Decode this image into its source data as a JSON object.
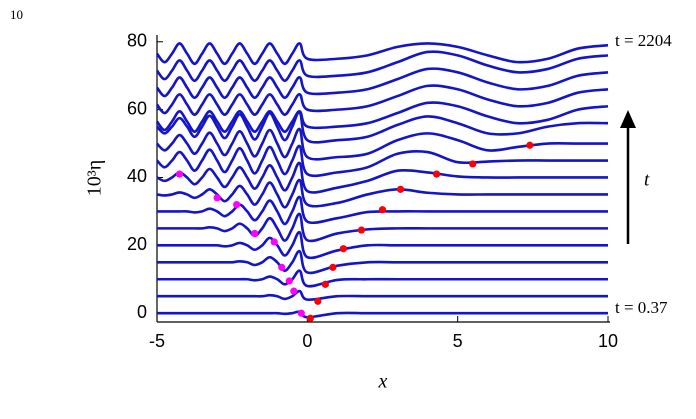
{
  "page_number": "10",
  "chart_data": {
    "type": "line",
    "xlabel": "x",
    "ylabel": "10³η",
    "top_label": "t = 2204",
    "bottom_label": "t = 0.37",
    "arrow_label": "t",
    "xlim": [
      -5,
      10
    ],
    "ylim": [
      -2.6,
      82
    ],
    "xticks": [
      -5,
      0,
      5,
      10
    ],
    "yticks": [
      0,
      20,
      40,
      60,
      80
    ],
    "line_color": "#1414c8",
    "x": [
      -5,
      -4.75,
      -4.5,
      -4.25,
      -4,
      -3.75,
      -3.5,
      -3.25,
      -3,
      -2.75,
      -2.5,
      -2.25,
      -2,
      -1.75,
      -1.5,
      -1.25,
      -1,
      -0.75,
      -0.5,
      -0.25,
      0,
      1,
      2,
      3,
      4,
      5,
      6,
      7,
      8,
      9,
      10
    ],
    "series": [
      {
        "values": [
          0,
          0,
          0,
          0,
          0,
          0,
          0,
          0,
          0,
          0,
          0,
          0,
          0,
          0,
          0,
          0,
          0,
          -0.2,
          0,
          0.4,
          -1.2,
          0,
          0,
          0,
          0,
          0,
          0,
          0,
          0,
          0,
          0
        ]
      },
      {
        "values": [
          5,
          5,
          5,
          5,
          5,
          5,
          5,
          5,
          5,
          5,
          5,
          5,
          5,
          5,
          5,
          5.3,
          5,
          4.2,
          5,
          6.5,
          4,
          5,
          5,
          5,
          5,
          5,
          5,
          5,
          5,
          5,
          5
        ]
      },
      {
        "values": [
          10,
          10,
          10,
          10,
          10,
          10,
          10,
          10,
          10,
          10,
          10,
          10,
          10,
          9.7,
          10,
          10.8,
          10,
          8.5,
          10,
          12.5,
          8,
          9.8,
          10,
          10,
          10,
          10,
          10,
          10,
          10,
          10,
          10
        ]
      },
      {
        "values": [
          15,
          15,
          15,
          15,
          15,
          15,
          15,
          15,
          15,
          15,
          15,
          15.3,
          15,
          14.2,
          15,
          16.5,
          15,
          12.5,
          15,
          18.2,
          12,
          14,
          15,
          15,
          15,
          15,
          15,
          15,
          15,
          15,
          15
        ]
      },
      {
        "values": [
          20,
          20,
          20,
          20,
          20,
          20,
          20,
          20,
          20,
          19.7,
          20,
          20.7,
          20,
          18.7,
          20,
          22.2,
          20,
          17,
          20,
          23.8,
          16.5,
          18.5,
          20,
          20,
          20,
          20,
          20,
          20,
          20,
          20,
          20
        ]
      },
      {
        "values": [
          25,
          25,
          25,
          25,
          25,
          25,
          25,
          25.3,
          25,
          24.2,
          25,
          26.4,
          25,
          22.8,
          25,
          28,
          25,
          21.4,
          25,
          29.2,
          21.5,
          23.5,
          24.7,
          25,
          25,
          25,
          25,
          25,
          25,
          25,
          25
        ]
      },
      {
        "values": [
          30,
          30,
          30,
          30,
          30,
          29.7,
          30,
          30.8,
          30,
          28.6,
          30,
          32,
          30,
          27.4,
          30,
          33.2,
          30,
          26.3,
          30,
          34.2,
          27,
          28,
          29.8,
          30,
          30,
          30,
          30,
          30,
          30,
          30,
          30
        ]
      },
      {
        "values": [
          35,
          34.7,
          35,
          35.6,
          35,
          34,
          35,
          36.5,
          35,
          33,
          35,
          37.5,
          35,
          32,
          35,
          38.5,
          35,
          31.2,
          35,
          39.2,
          32,
          32.5,
          35,
          36.5,
          35.5,
          35,
          35,
          35,
          35,
          35,
          35
        ]
      },
      {
        "values": [
          40,
          39,
          40,
          41.5,
          40,
          38,
          40,
          42.5,
          40,
          37.2,
          40,
          43,
          40,
          36.7,
          40,
          43.6,
          40,
          36.2,
          40,
          44.2,
          36,
          37,
          39,
          42,
          41.5,
          40.3,
          40,
          40,
          40,
          40,
          40
        ]
      },
      {
        "values": [
          45,
          43,
          45,
          47.5,
          45,
          42,
          45,
          48.2,
          45,
          41.6,
          45,
          48.6,
          45,
          41.2,
          45,
          49,
          45,
          41,
          45,
          49.2,
          41,
          41.5,
          43,
          47,
          47.5,
          44.5,
          44.7,
          45,
          45,
          45,
          45
        ]
      },
      {
        "values": [
          50,
          48,
          50,
          52.5,
          50,
          47,
          50,
          53.2,
          50,
          46.6,
          50,
          53.6,
          50,
          46.2,
          50,
          54,
          50,
          46,
          50,
          54.2,
          46,
          46,
          47,
          51,
          53,
          51,
          48,
          49,
          50,
          50,
          50
        ]
      },
      {
        "values": [
          55,
          53,
          55,
          57.5,
          55,
          52,
          55,
          58.2,
          55,
          51.6,
          55,
          58.6,
          55,
          51.2,
          55,
          59,
          55,
          51,
          55,
          59.2,
          51,
          51,
          52,
          55.5,
          58,
          56,
          53,
          53,
          55,
          56,
          56
        ]
      },
      {
        "values": [
          56.5,
          54,
          56.5,
          59.5,
          56.5,
          53.5,
          56.5,
          59.5,
          56.5,
          53.5,
          56.5,
          59.5,
          56.5,
          53.5,
          56.5,
          59.5,
          56.5,
          53.5,
          56.5,
          59.5,
          55,
          55,
          56,
          59,
          62,
          61,
          58,
          56,
          57,
          60,
          61
        ]
      },
      {
        "values": [
          61.5,
          59,
          61.5,
          64.5,
          61.5,
          58.5,
          61.5,
          64.5,
          61.5,
          58.5,
          61.5,
          64.5,
          61.5,
          58.5,
          61.5,
          64.5,
          61.5,
          58.5,
          61.5,
          64.5,
          60,
          60,
          61,
          64,
          67,
          66,
          63,
          61,
          62,
          65,
          66
        ]
      },
      {
        "values": [
          66.5,
          64,
          66.5,
          69.5,
          66.5,
          63.5,
          66.5,
          69.5,
          66.5,
          63.5,
          66.5,
          69.5,
          66.5,
          63.5,
          66.5,
          69.5,
          66.5,
          63.5,
          66.5,
          69.5,
          65,
          65,
          66,
          69,
          72,
          71,
          68,
          66,
          67,
          70,
          71
        ]
      },
      {
        "values": [
          71.5,
          69,
          71.5,
          74.5,
          71.5,
          68.5,
          71.5,
          74.5,
          71.5,
          68.5,
          71.5,
          74.5,
          71.5,
          68.5,
          71.5,
          74.5,
          71.5,
          68.5,
          71.5,
          74.5,
          70,
          70,
          71,
          74,
          77,
          76,
          73,
          71,
          72,
          75,
          76
        ]
      },
      {
        "values": [
          76.5,
          74,
          76.5,
          79.5,
          76.5,
          73.5,
          76.5,
          79.5,
          76.5,
          73.5,
          76.5,
          79.5,
          76.5,
          73.5,
          76.5,
          79.5,
          76.5,
          73.5,
          76.5,
          79.5,
          75,
          75,
          76,
          78.5,
          79.5,
          78.5,
          76,
          74,
          75,
          78,
          79
        ]
      }
    ],
    "markers": [
      {
        "color": "#ff0000",
        "x": [
          0.1,
          0.35,
          0.6,
          0.85,
          1.2,
          1.8,
          2.5,
          3.1,
          4.3,
          5.5,
          7.4
        ],
        "y": [
          -1.5,
          3.5,
          8.5,
          13.5,
          19,
          24.5,
          30.5,
          36.5,
          41,
          44,
          49.5
        ]
      },
      {
        "color": "#ff00ff",
        "x": [
          -0.2,
          -0.45,
          -0.6,
          -0.85,
          -1.1,
          -1.75,
          -2.35,
          -3.0,
          -4.25
        ],
        "y": [
          0,
          6.5,
          9.5,
          13.5,
          21,
          23.5,
          32,
          34,
          41
        ]
      }
    ]
  }
}
